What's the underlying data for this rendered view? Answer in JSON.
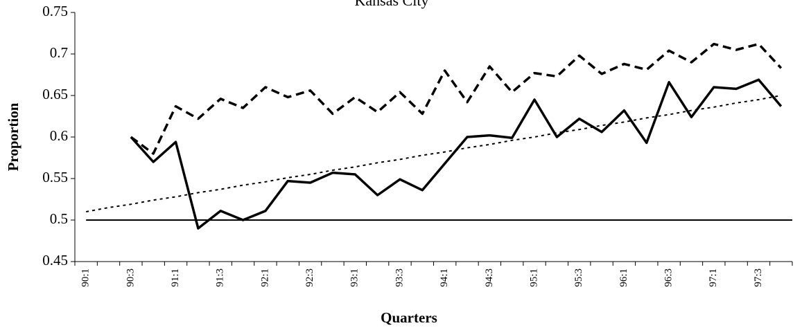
{
  "chart_data": {
    "type": "line",
    "title": "Kansas City",
    "x_label": "Quarters",
    "y_label": "Proportion",
    "categories": [
      "90:1",
      null,
      "90:3",
      null,
      "91:1",
      null,
      "91:3",
      null,
      "92:1",
      null,
      "92:3",
      null,
      "93:1",
      null,
      "93:3",
      null,
      "94:1",
      null,
      "94:3",
      null,
      "95:1",
      null,
      "95:3",
      null,
      "96:1",
      null,
      "96:3",
      null,
      "97:1",
      null,
      "97:3",
      null
    ],
    "series": [
      {
        "color": "#000000",
        "style": "solid",
        "width": 3.5,
        "values": [
          null,
          null,
          0.6,
          0.57,
          0.594,
          0.49,
          0.511,
          0.5,
          0.511,
          0.547,
          0.545,
          0.557,
          0.555,
          0.53,
          0.549,
          0.536,
          0.568,
          0.6,
          0.602,
          0.599,
          0.645,
          0.6,
          0.622,
          0.606,
          0.632,
          0.593,
          0.666,
          0.624,
          0.66,
          0.658,
          0.669,
          0.637
        ]
      },
      {
        "color": "#000000",
        "style": "dashed",
        "width": 3.5,
        "values": [
          null,
          null,
          0.6,
          0.58,
          0.637,
          0.622,
          0.646,
          0.635,
          0.66,
          0.648,
          0.656,
          0.628,
          0.648,
          0.63,
          0.654,
          0.628,
          0.68,
          0.642,
          0.685,
          0.654,
          0.677,
          0.673,
          0.698,
          0.676,
          0.688,
          0.681,
          0.704,
          0.69,
          0.712,
          0.705,
          0.712,
          0.683
        ]
      },
      {
        "color": "#000000",
        "style": "dotted",
        "width": 2,
        "values": [
          0.51,
          0.515,
          0.519,
          0.524,
          0.528,
          0.533,
          0.537,
          0.542,
          0.546,
          0.551,
          0.555,
          0.56,
          0.564,
          0.569,
          0.573,
          0.578,
          0.582,
          0.587,
          0.591,
          0.596,
          0.6,
          0.605,
          0.609,
          0.614,
          0.618,
          0.623,
          0.627,
          0.632,
          0.636,
          0.641,
          0.645,
          0.65
        ]
      }
    ],
    "reference_line": 0.5,
    "ylim": [
      0.45,
      0.75
    ],
    "yticks": [
      0.45,
      0.5,
      0.55,
      0.6,
      0.65,
      0.7,
      0.75
    ]
  }
}
